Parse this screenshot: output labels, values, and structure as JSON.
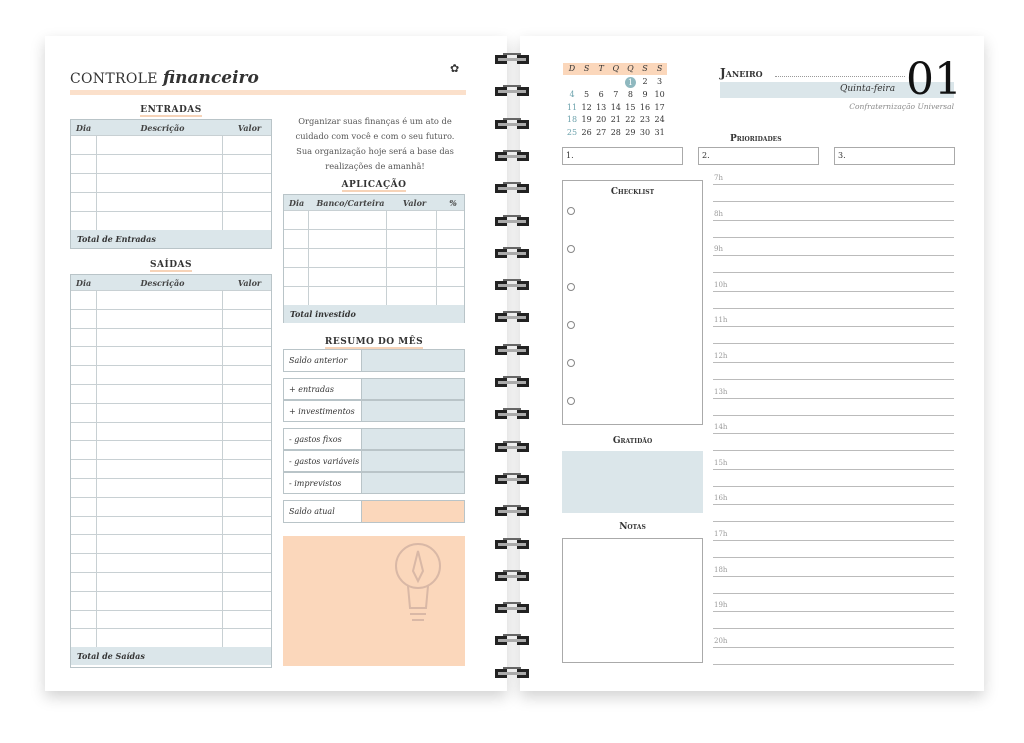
{
  "left": {
    "title_a": "CONTROLE",
    "title_b": "financeiro",
    "entradas": {
      "title": "ENTRADAS",
      "cols": [
        "Dia",
        "Descrição",
        "Valor"
      ],
      "total": "Total de Entradas"
    },
    "saidas": {
      "title": "SAÍDAS",
      "cols": [
        "Dia",
        "Descrição",
        "Valor"
      ],
      "total": "Total de Saídas"
    },
    "quote": "Organizar suas finanças é um ato de cuidado com você e com o seu futuro. Sua organização hoje será a base das realizações de amanhã!",
    "aplicacao": {
      "title": "APLICAÇÃO",
      "cols": [
        "Dia",
        "Banco/Carteira",
        "Valor",
        "%"
      ],
      "total": "Total investido"
    },
    "resumo": {
      "title": "RESUMO DO MÊS",
      "saldo_anterior": "Saldo anterior",
      "entradas": "+ entradas",
      "investimentos": "+ investimentos",
      "gastos_fixos": "- gastos fixos",
      "gastos_variaveis": "- gastos variáveis",
      "imprevistos": "- imprevistos",
      "saldo_atual": "Saldo atual"
    }
  },
  "right": {
    "calendar": {
      "weekdays": [
        "D",
        "S",
        "T",
        "Q",
        "Q",
        "S",
        "S"
      ],
      "days": [
        [
          "",
          "",
          "",
          "",
          "1",
          "2",
          "3"
        ],
        [
          "4",
          "5",
          "6",
          "7",
          "8",
          "9",
          "10"
        ],
        [
          "11",
          "12",
          "13",
          "14",
          "15",
          "16",
          "17"
        ],
        [
          "18",
          "19",
          "20",
          "21",
          "22",
          "23",
          "24"
        ],
        [
          "25",
          "26",
          "27",
          "28",
          "29",
          "30",
          "31"
        ]
      ],
      "highlight": "1"
    },
    "month": "Janeiro",
    "weekday": "Quinta-feira",
    "day": "01",
    "holiday": "Confraternização Universal",
    "priorities_title": "Prioridades",
    "priorities": [
      "1.",
      "2.",
      "3."
    ],
    "checklist_title": "Checklist",
    "gratidao_title": "Gratidão",
    "notas_title": "Notas",
    "hours": [
      "7h",
      "8h",
      "9h",
      "10h",
      "11h",
      "12h",
      "13h",
      "14h",
      "15h",
      "16h",
      "17h",
      "18h",
      "19h",
      "20h"
    ]
  },
  "colors": {
    "peach": "#fbd7bb",
    "blue": "#dbe6ea",
    "teal": "#8fb8bf"
  }
}
